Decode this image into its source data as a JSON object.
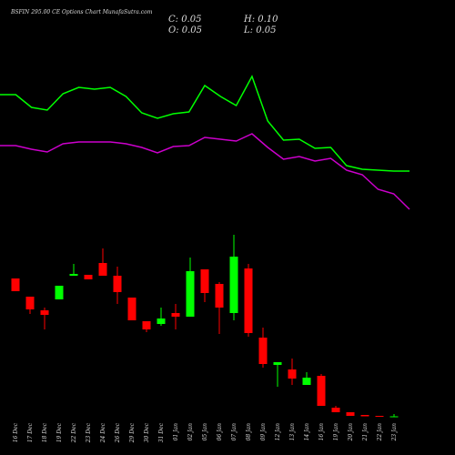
{
  "chart_data": {
    "type": "candlestick",
    "title": "BSFIN 295.00 CE Options Chart MunafaSutra.com",
    "info": [
      "C: 0.05",
      "H: 0.10",
      "O: 0.05",
      "L: 0.05"
    ],
    "categories": [
      "16 Dec",
      "17 Dec",
      "18 Dec",
      "19 Dec",
      "22 Dec",
      "23 Dec",
      "24 Dec",
      "26 Dec",
      "29 Dec",
      "30 Dec",
      "31 Dec",
      "01 Jan",
      "02 Jan",
      "05 Jan",
      "06 Jan",
      "07 Jan",
      "08 Jan",
      "09 Jan",
      "12 Jan",
      "13 Jan",
      "14 Jan",
      "16 Jan",
      "19 Jan",
      "20 Jan",
      "21 Jan",
      "22 Jan",
      "23 Jan"
    ],
    "open": [
      3.08,
      2.68,
      2.38,
      2.62,
      3.14,
      3.16,
      3.42,
      3.14,
      2.66,
      2.14,
      2.08,
      2.32,
      2.24,
      3.28,
      2.96,
      2.32,
      3.3,
      1.78,
      1.18,
      1.08,
      0.74,
      0.94,
      0.24,
      0.14,
      0.08,
      0.06,
      0.05
    ],
    "high": [
      3.08,
      2.68,
      2.44,
      2.92,
      3.4,
      3.16,
      3.74,
      3.34,
      2.66,
      2.14,
      2.44,
      2.52,
      3.54,
      3.28,
      3.0,
      4.04,
      3.4,
      2.0,
      1.24,
      1.32,
      1.02,
      0.98,
      0.28,
      0.14,
      0.08,
      0.06,
      0.1
    ],
    "low": [
      2.8,
      2.3,
      1.96,
      2.62,
      3.14,
      3.06,
      3.14,
      2.52,
      2.16,
      1.9,
      2.04,
      1.96,
      2.24,
      2.56,
      1.86,
      2.16,
      1.8,
      1.12,
      0.7,
      0.74,
      0.74,
      0.28,
      0.14,
      0.06,
      0.05,
      0.04,
      0.05
    ],
    "close": [
      2.8,
      2.4,
      2.28,
      2.92,
      3.18,
      3.06,
      3.14,
      2.78,
      2.16,
      1.96,
      2.2,
      2.24,
      3.24,
      2.76,
      2.44,
      3.56,
      1.88,
      1.2,
      1.24,
      0.88,
      0.9,
      0.28,
      0.14,
      0.06,
      0.05,
      0.04,
      0.05
    ],
    "up_color": "#00ff00",
    "down_color": "#ff0000",
    "lines": [
      {
        "color": "#00ff00",
        "values": [
          7.12,
          7.12,
          6.84,
          6.78,
          7.14,
          7.28,
          7.24,
          7.28,
          7.08,
          6.72,
          6.6,
          6.7,
          6.74,
          7.32,
          7.08,
          6.88,
          7.52,
          6.54,
          6.12,
          6.14,
          5.94,
          5.96,
          5.56,
          5.48,
          5.46,
          5.44,
          5.44
        ]
      },
      {
        "color": "#cc00cc",
        "values": [
          6.0,
          6.0,
          5.92,
          5.86,
          6.04,
          6.08,
          6.08,
          6.08,
          6.04,
          5.96,
          5.84,
          5.98,
          6.0,
          6.18,
          6.14,
          6.1,
          6.26,
          5.96,
          5.7,
          5.76,
          5.66,
          5.72,
          5.46,
          5.36,
          5.04,
          4.94,
          4.6
        ]
      }
    ],
    "ylim": [
      0,
      8.4
    ]
  }
}
